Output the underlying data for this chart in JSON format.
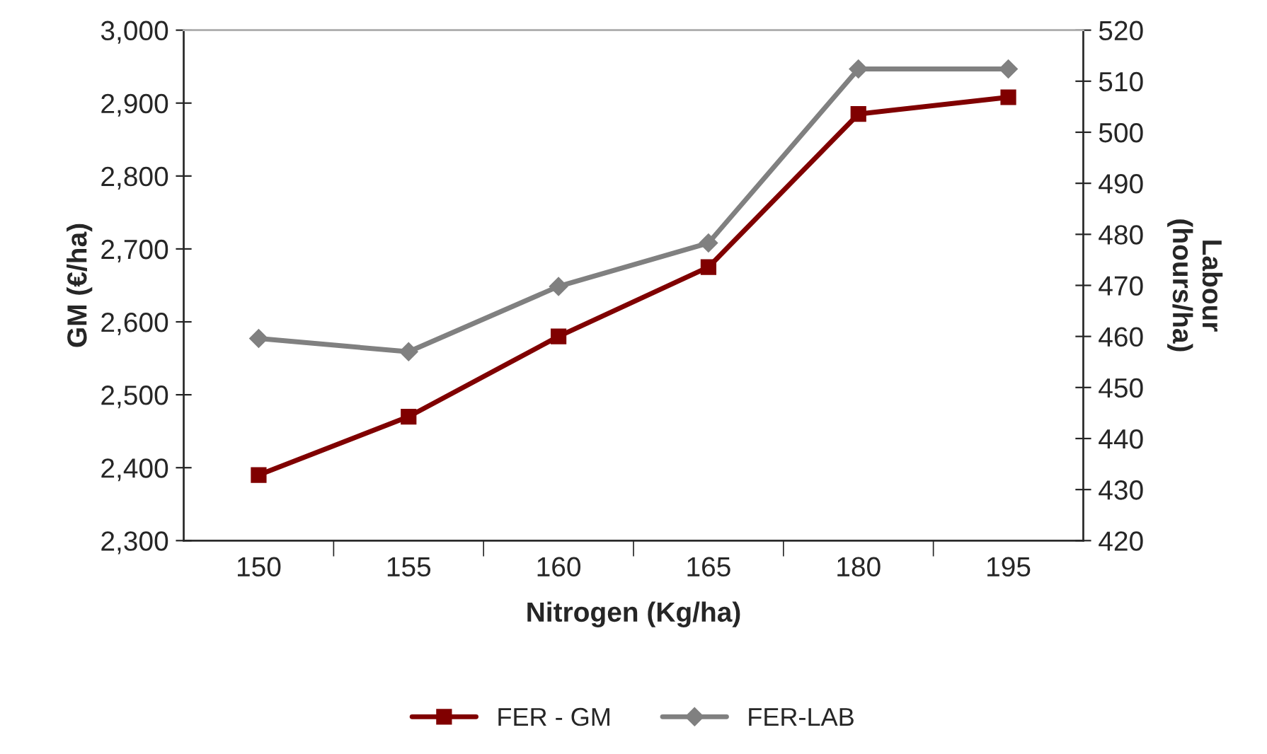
{
  "chart_data": {
    "type": "line",
    "xlabel": "Nitrogen (Kg/ha)",
    "ylabel": "GM (€/ha)",
    "y2label": "Labour\n(hours/ha)",
    "categories": [
      "150",
      "155",
      "160",
      "165",
      "180",
      "195"
    ],
    "series": [
      {
        "name": "FER - GM",
        "color": "#800000",
        "marker": "square",
        "values": [
          2390,
          2470,
          2580,
          2675,
          2885,
          2908
        ]
      },
      {
        "name": "FER-LAB",
        "color": "#808080",
        "marker": "diamond",
        "axis": "y2",
        "values": [
          459.6,
          457,
          469.8,
          478.3,
          512.4,
          512.4
        ]
      }
    ],
    "ylim": [
      2300,
      3000
    ],
    "yticks": [
      {
        "value": 2300,
        "label": "2,300"
      },
      {
        "value": 2400,
        "label": "2,400"
      },
      {
        "value": 2500,
        "label": "2,500"
      },
      {
        "value": 2600,
        "label": "2,600"
      },
      {
        "value": 2700,
        "label": "2,700"
      },
      {
        "value": 2800,
        "label": "2,800"
      },
      {
        "value": 2900,
        "label": "2,900"
      },
      {
        "value": 3000,
        "label": "3,000"
      }
    ],
    "y2lim": [
      420,
      520
    ],
    "y2ticks": [
      420,
      430,
      440,
      450,
      460,
      470,
      480,
      490,
      500,
      510,
      520
    ],
    "grid": false,
    "legend": "bottom",
    "line_style": "solid"
  }
}
